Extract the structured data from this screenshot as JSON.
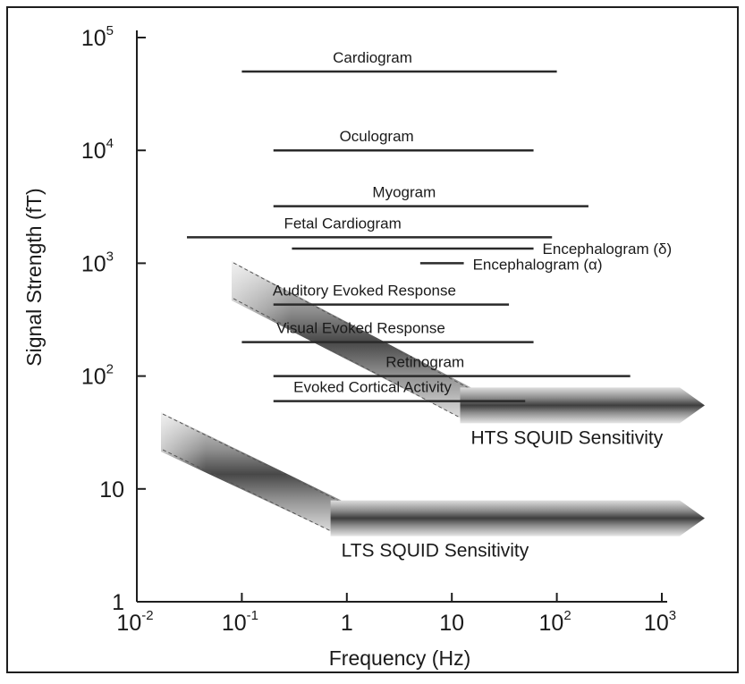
{
  "chart_data": {
    "type": "range-bars",
    "xlabel": "Frequency (Hz)",
    "ylabel": "Signal Strength (fT)",
    "x_scale": "log",
    "y_scale": "log",
    "xlim": [
      0.01,
      1000
    ],
    "ylim": [
      1,
      100000
    ],
    "x_ticks": [
      {
        "value": 0.01,
        "base": "10",
        "exp": "-2"
      },
      {
        "value": 0.1,
        "base": "10",
        "exp": "-1"
      },
      {
        "value": 1,
        "base": "1",
        "exp": ""
      },
      {
        "value": 10,
        "base": "10",
        "exp": ""
      },
      {
        "value": 100,
        "base": "10",
        "exp": "2"
      },
      {
        "value": 1000,
        "base": "10",
        "exp": "3"
      }
    ],
    "y_ticks": [
      {
        "value": 1,
        "base": "1",
        "exp": ""
      },
      {
        "value": 10,
        "base": "10",
        "exp": ""
      },
      {
        "value": 100,
        "base": "10",
        "exp": "2"
      },
      {
        "value": 1000,
        "base": "10",
        "exp": "3"
      },
      {
        "value": 10000,
        "base": "10",
        "exp": "4"
      },
      {
        "value": 100000,
        "base": "10",
        "exp": "5"
      }
    ],
    "signals": [
      {
        "name": "Cardiogram",
        "fmin": 0.1,
        "fmax": 100,
        "strength": 50000,
        "label_anchor": "above"
      },
      {
        "name": "Oculogram",
        "fmin": 0.2,
        "fmax": 60,
        "strength": 10000,
        "label_anchor": "above"
      },
      {
        "name": "Myogram",
        "fmin": 0.2,
        "fmax": 200,
        "strength": 3200,
        "label_anchor": "above"
      },
      {
        "name": "Fetal Cardiogram",
        "fmin": 0.03,
        "fmax": 90,
        "strength": 1700,
        "label_anchor": "above"
      },
      {
        "name": "Encephalogram (δ)",
        "fmin": 0.3,
        "fmax": 60,
        "strength": 1350,
        "label_anchor": "right"
      },
      {
        "name": "Encephalogram (α)",
        "fmin": 5,
        "fmax": 13,
        "strength": 1000,
        "label_anchor": "right"
      },
      {
        "name": "Auditory Evoked Response",
        "fmin": 0.2,
        "fmax": 35,
        "strength": 430,
        "label_anchor": "above"
      },
      {
        "name": "Visual Evoked Response",
        "fmin": 0.1,
        "fmax": 60,
        "strength": 200,
        "label_anchor": "above"
      },
      {
        "name": "Retinogram",
        "fmin": 0.2,
        "fmax": 500,
        "strength": 100,
        "label_anchor": "above"
      },
      {
        "name": "Evoked Cortical Activity",
        "fmin": 0.2,
        "fmax": 50,
        "strength": 60,
        "label_anchor": "above"
      }
    ],
    "sensitivity_bands": [
      {
        "name": "HTS SQUID Sensitivity",
        "diagonal_start": [
          0.08,
          700
        ],
        "knee": [
          12,
          55
        ],
        "end_freq": 1000
      },
      {
        "name": "LTS SQUID Sensitivity",
        "diagonal_start": [
          0.017,
          32
        ],
        "knee": [
          0.7,
          5.5
        ],
        "end_freq": 1000
      }
    ]
  }
}
